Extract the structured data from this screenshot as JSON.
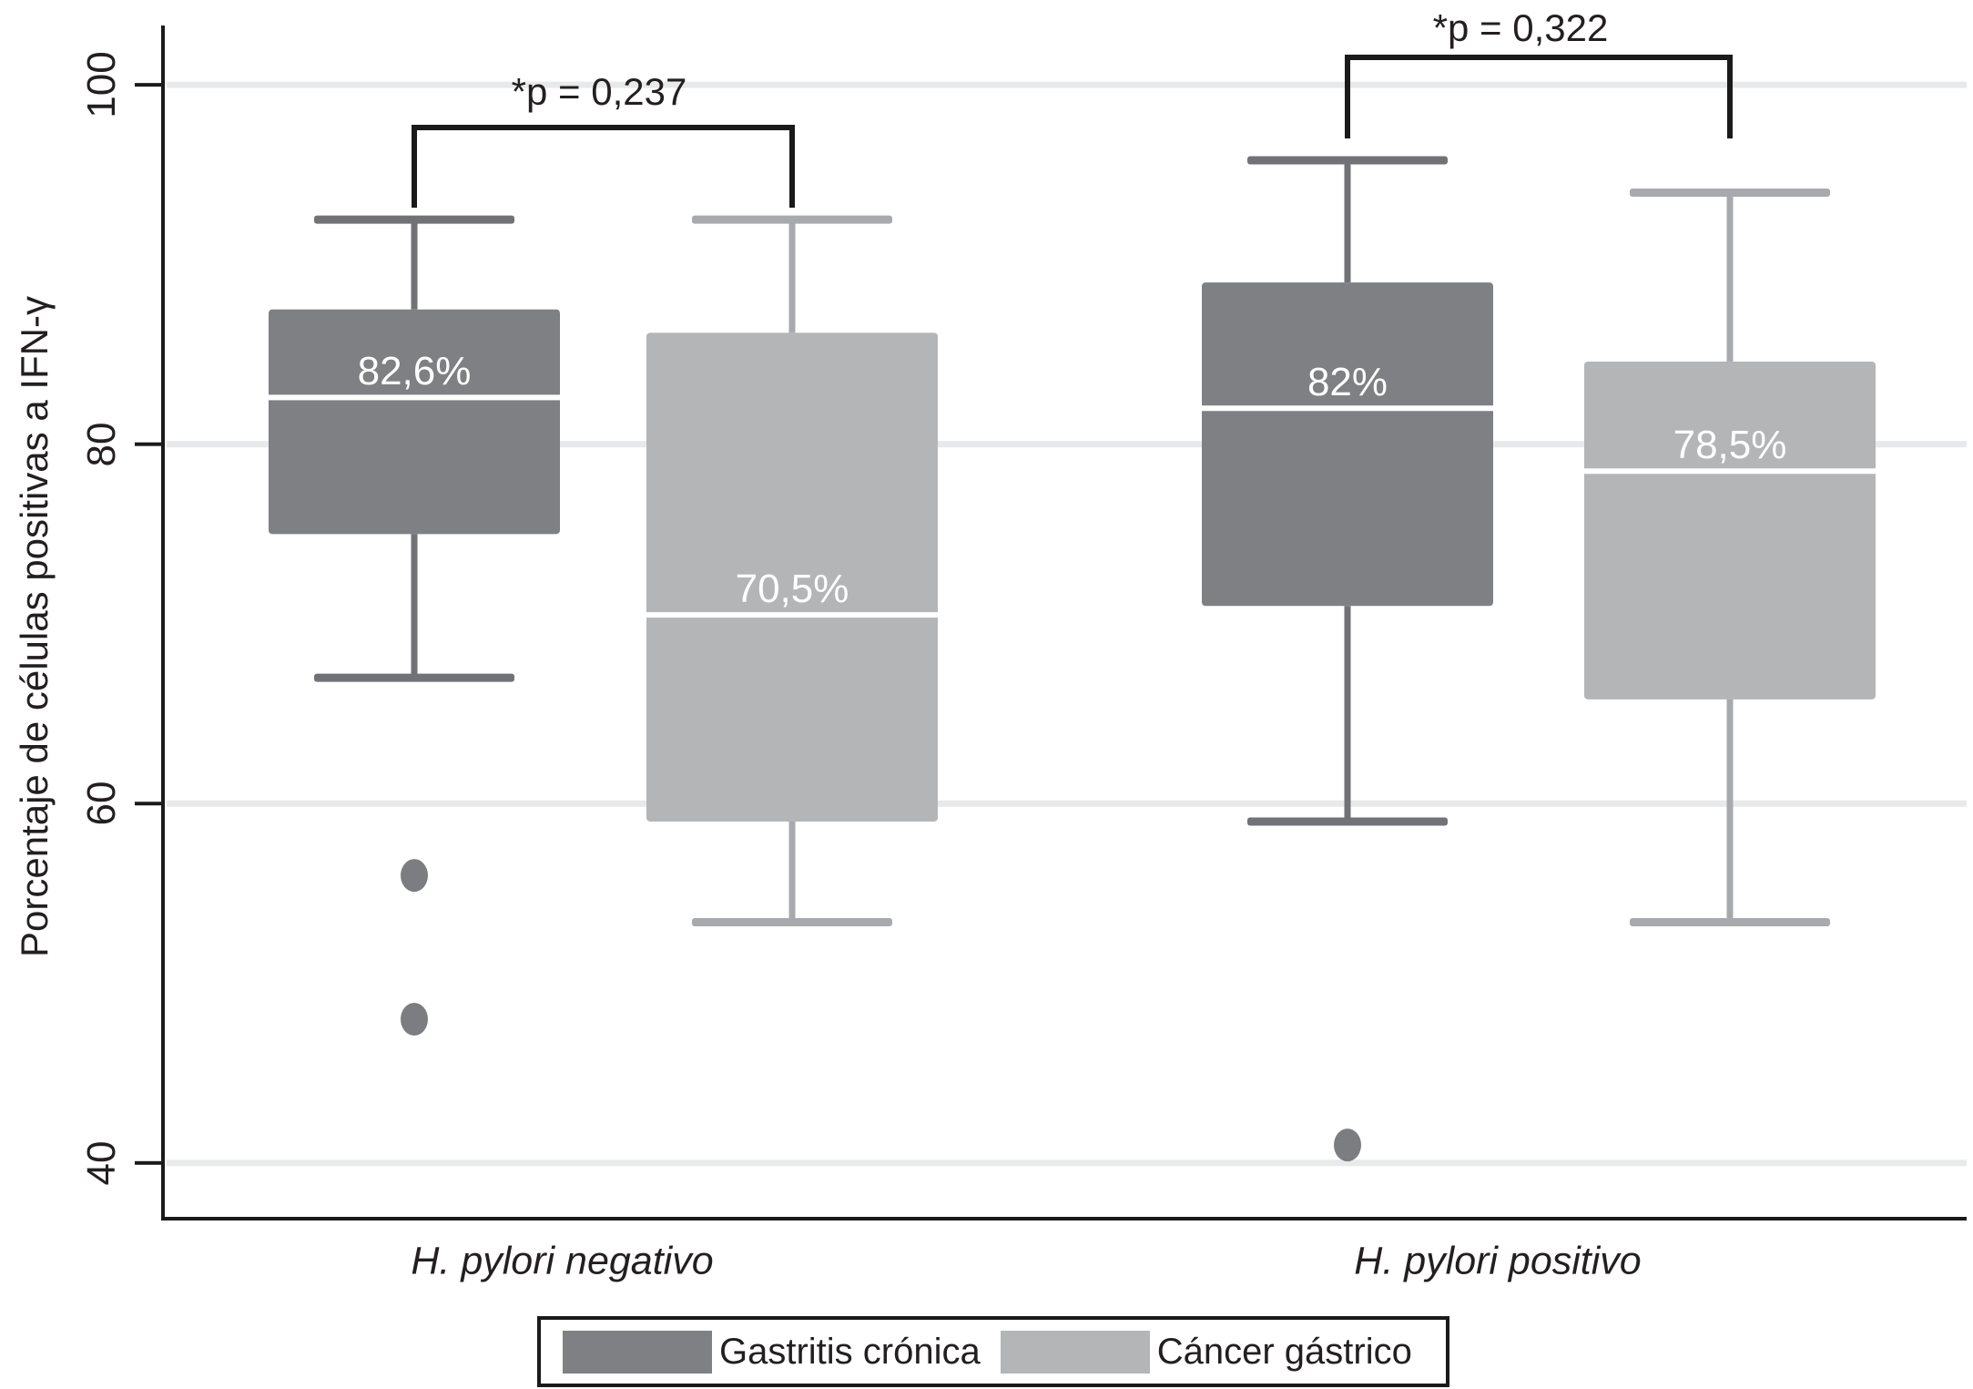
{
  "chart_data": {
    "type": "boxplot",
    "title": "",
    "ylabel": "Porcentaje de células positivas a IFN-γ",
    "xlabel": "",
    "y_ticks": [
      100,
      80,
      60,
      40
    ],
    "ylim": [
      37,
      103.2
    ],
    "grid": "horizontal",
    "legend_position": "bottom",
    "groups": [
      {
        "label": "H. pylori negativo",
        "p_value_label": "*p = 0,237",
        "boxes": [
          {
            "series": "Gastritis crónica",
            "median": 82.6,
            "median_label": "82,6%",
            "q1": 75,
            "q3": 87.5,
            "whisker_low": 67,
            "whisker_high": 92.5,
            "outliers": [
              56,
              48
            ]
          },
          {
            "series": "Cáncer gástrico",
            "median": 70.5,
            "median_label": "70,5%",
            "q1": 59,
            "q3": 86.2,
            "whisker_low": 53.4,
            "whisker_high": 92.5,
            "outliers": []
          }
        ]
      },
      {
        "label": "H. pylori positivo",
        "p_value_label": "*p = 0,322",
        "boxes": [
          {
            "series": "Gastritis crónica",
            "median": 82,
            "median_label": "82%",
            "q1": 71,
            "q3": 89,
            "whisker_low": 59,
            "whisker_high": 95.8,
            "outliers": [
              41
            ]
          },
          {
            "series": "Cáncer gástrico",
            "median": 78.5,
            "median_label": "78,5%",
            "q1": 65.8,
            "q3": 84.6,
            "whisker_low": 53.4,
            "whisker_high": 94,
            "outliers": []
          }
        ]
      }
    ],
    "legend": [
      {
        "label": "Gastritis crónica",
        "color": "#7e8083",
        "whisker_color": "#717276"
      },
      {
        "label": "Cáncer gástrico",
        "color": "#b3b5b7",
        "whisker_color": "#a7a9ac"
      }
    ],
    "colors": {
      "background": "#ffffff",
      "gridline": "#e8e9ea",
      "axis": "#1a1a1a",
      "bracket": "#1a1a1a",
      "text": "#231f20",
      "median_line": "#ffffff",
      "outlier": "#7b7d80"
    }
  }
}
